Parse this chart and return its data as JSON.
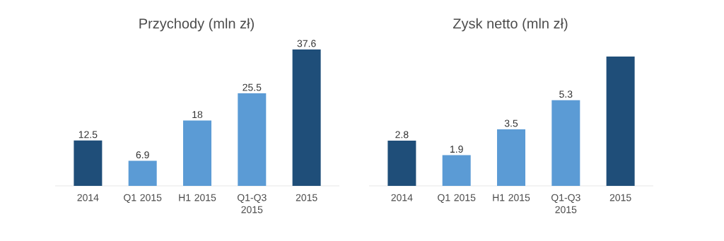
{
  "chart_data": [
    {
      "type": "bar",
      "title": "Przychody (mln zł)",
      "categories": [
        "2014",
        "Q1 2015",
        "H1 2015",
        "Q1-Q3 2015",
        "2015"
      ],
      "values": [
        12.5,
        6.9,
        18,
        25.5,
        37.6
      ],
      "colors": [
        "#1f4e79",
        "#5b9bd5",
        "#5b9bd5",
        "#5b9bd5",
        "#1f4e79"
      ],
      "data_labels": true
    },
    {
      "type": "bar",
      "title": "Zysk netto (mln zł)",
      "categories": [
        "2014",
        "Q1 2015",
        "H1 2015",
        "Q1-Q3 2015",
        "2015"
      ],
      "values": [
        2.8,
        1.9,
        3.5,
        5.3,
        8.0
      ],
      "colors": [
        "#1f4e79",
        "#5b9bd5",
        "#5b9bd5",
        "#5b9bd5",
        "#1f4e79"
      ],
      "value_labels": [
        "2.8",
        "1.9",
        "3.5",
        "5.3",
        null
      ]
    }
  ]
}
